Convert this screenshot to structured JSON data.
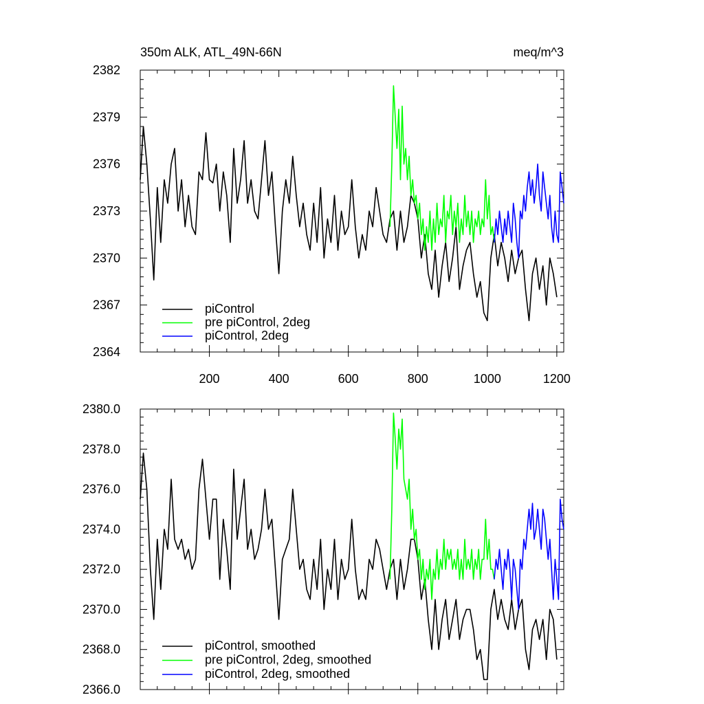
{
  "top_panel": {
    "title_left": "350m ALK, ATL_49N-66N",
    "title_right": "meq/m^3"
  },
  "chart_data": [
    {
      "type": "line",
      "title": "350m ALK, ATL_49N-66N",
      "units": "meq/m^3",
      "xlim": [
        1,
        1220
      ],
      "ylim": [
        2364,
        2382
      ],
      "x_ticks": [
        200,
        400,
        600,
        800,
        1000,
        1200
      ],
      "x_tick_labels": [
        "200",
        "400",
        "600",
        "800",
        "1000",
        "1200"
      ],
      "y_ticks": [
        2364,
        2367,
        2370,
        2373,
        2376,
        2379,
        2382
      ],
      "y_tick_labels": [
        "2364",
        "2367",
        "2370",
        "2373",
        "2376",
        "2379",
        "2382"
      ],
      "legend_position": "bottom-left",
      "series": [
        {
          "name": "piControl",
          "color": "#000000",
          "x": [
            1,
            10,
            20,
            30,
            40,
            50,
            60,
            70,
            80,
            90,
            100,
            110,
            120,
            130,
            140,
            150,
            160,
            170,
            180,
            190,
            200,
            210,
            220,
            230,
            240,
            250,
            260,
            270,
            280,
            290,
            300,
            310,
            320,
            330,
            340,
            350,
            360,
            370,
            380,
            390,
            400,
            410,
            420,
            430,
            440,
            450,
            460,
            470,
            480,
            490,
            500,
            510,
            520,
            530,
            540,
            550,
            560,
            570,
            580,
            590,
            600,
            610,
            620,
            630,
            640,
            650,
            660,
            670,
            680,
            690,
            700,
            710,
            720,
            730,
            740,
            750,
            760,
            770,
            780,
            790,
            800,
            810,
            820,
            830,
            840,
            850,
            860,
            870,
            880,
            890,
            900,
            910,
            920,
            930,
            940,
            950,
            960,
            970,
            980,
            990,
            1000,
            1010,
            1020,
            1030,
            1040,
            1050,
            1060,
            1070,
            1080,
            1090,
            1100,
            1110,
            1120,
            1130,
            1140,
            1150,
            1160,
            1170,
            1180,
            1190,
            1200
          ],
          "y": [
            2375.0,
            2378.4,
            2376.0,
            2372.5,
            2368.6,
            2374.5,
            2371.0,
            2375.0,
            2373.5,
            2376.0,
            2377.0,
            2373.0,
            2375.0,
            2372.0,
            2374.0,
            2372.0,
            2371.5,
            2375.5,
            2375.0,
            2378.0,
            2375.0,
            2374.8,
            2376.0,
            2373.0,
            2375.5,
            2374.0,
            2371.0,
            2377.0,
            2373.5,
            2375.0,
            2377.5,
            2373.5,
            2375.0,
            2373.0,
            2372.5,
            2375.0,
            2377.5,
            2374.0,
            2375.5,
            2372.0,
            2369.0,
            2373.0,
            2375.0,
            2373.5,
            2376.5,
            2374.0,
            2372.0,
            2373.5,
            2371.5,
            2370.5,
            2373.5,
            2371.0,
            2374.5,
            2370.0,
            2372.5,
            2371.0,
            2374.0,
            2370.5,
            2373.0,
            2371.5,
            2372.0,
            2375.0,
            2372.0,
            2370.0,
            2371.5,
            2370.5,
            2373.0,
            2372.0,
            2374.5,
            2373.0,
            2371.5,
            2371.0,
            2372.5,
            2373.0,
            2370.5,
            2373.0,
            2371.0,
            2372.0,
            2374.0,
            2373.5,
            2372.5,
            2370.0,
            2371.5,
            2369.0,
            2368.0,
            2370.5,
            2367.5,
            2369.5,
            2371.0,
            2368.5,
            2370.0,
            2372.0,
            2368.0,
            2369.5,
            2370.5,
            2371.0,
            2369.0,
            2367.5,
            2368.5,
            2366.5,
            2366.0,
            2370.0,
            2371.5,
            2369.5,
            2371.0,
            2370.0,
            2368.5,
            2370.5,
            2369.0,
            2370.0,
            2370.5,
            2368.0,
            2366.0,
            2369.0,
            2370.0,
            2368.0,
            2369.5,
            2367.0,
            2370.0,
            2369.0,
            2367.5
          ]
        },
        {
          "name": "pre piControl, 2deg",
          "color": "#00ff00",
          "x": [
            720,
            725,
            730,
            735,
            740,
            745,
            750,
            755,
            760,
            765,
            770,
            775,
            780,
            785,
            790,
            795,
            800,
            805,
            810,
            815,
            820,
            825,
            830,
            835,
            840,
            845,
            850,
            855,
            860,
            865,
            870,
            875,
            880,
            885,
            890,
            895,
            900,
            905,
            910,
            915,
            920,
            925,
            930,
            935,
            940,
            945,
            950,
            955,
            960,
            965,
            970,
            975,
            980,
            985,
            990,
            995,
            1000,
            1005,
            1010,
            1015,
            1020
          ],
          "y": [
            2372.0,
            2376.0,
            2381.0,
            2379.0,
            2377.0,
            2379.5,
            2375.0,
            2379.7,
            2376.0,
            2377.0,
            2375.0,
            2376.5,
            2374.0,
            2375.0,
            2373.5,
            2374.0,
            2372.5,
            2373.5,
            2371.5,
            2372.5,
            2370.5,
            2372.0,
            2371.0,
            2373.0,
            2370.5,
            2372.5,
            2371.0,
            2373.5,
            2371.5,
            2372.5,
            2372.0,
            2374.0,
            2371.0,
            2373.0,
            2372.5,
            2374.0,
            2371.5,
            2373.0,
            2372.0,
            2373.5,
            2371.0,
            2372.5,
            2371.5,
            2374.0,
            2372.0,
            2373.0,
            2371.5,
            2373.0,
            2371.0,
            2372.5,
            2372.0,
            2373.0,
            2371.5,
            2372.5,
            2372.0,
            2375.0,
            2372.5,
            2374.0,
            2371.5,
            2372.0,
            2371.0
          ]
        },
        {
          "name": "piControl, 2deg",
          "color": "#0000ff",
          "x": [
            1020,
            1025,
            1030,
            1035,
            1040,
            1045,
            1050,
            1055,
            1060,
            1065,
            1070,
            1075,
            1080,
            1085,
            1090,
            1095,
            1100,
            1105,
            1110,
            1115,
            1120,
            1125,
            1130,
            1135,
            1140,
            1145,
            1150,
            1155,
            1160,
            1165,
            1170,
            1175,
            1180,
            1185,
            1190,
            1195,
            1200,
            1205,
            1210,
            1215,
            1220
          ],
          "y": [
            2371.0,
            2372.5,
            2371.5,
            2373.0,
            2372.0,
            2371.0,
            2372.5,
            2371.5,
            2373.0,
            2372.0,
            2371.0,
            2373.5,
            2372.5,
            2371.0,
            2370.0,
            2373.0,
            2372.5,
            2374.0,
            2373.0,
            2374.5,
            2375.5,
            2374.0,
            2375.0,
            2373.5,
            2374.5,
            2376.0,
            2374.0,
            2373.0,
            2375.5,
            2374.5,
            2373.5,
            2372.5,
            2374.0,
            2372.0,
            2371.0,
            2373.0,
            2371.5,
            2371.0,
            2375.5,
            2374.5,
            2373.5
          ]
        }
      ]
    },
    {
      "type": "line",
      "xlim": [
        1,
        1220
      ],
      "ylim": [
        2366.0,
        2380.0
      ],
      "y_ticks": [
        2366,
        2368,
        2370,
        2372,
        2374,
        2376,
        2378,
        2380
      ],
      "y_tick_labels": [
        "2366.0",
        "2368.0",
        "2370.0",
        "2372.0",
        "2374.0",
        "2376.0",
        "2378.0",
        "2380.0"
      ],
      "legend_position": "bottom-left",
      "series": [
        {
          "name": "piControl, smoothed",
          "color": "#000000",
          "x": [
            1,
            10,
            20,
            30,
            40,
            50,
            60,
            70,
            80,
            90,
            100,
            110,
            120,
            130,
            140,
            150,
            160,
            170,
            180,
            190,
            200,
            210,
            220,
            230,
            240,
            250,
            260,
            270,
            280,
            290,
            300,
            310,
            320,
            330,
            340,
            350,
            360,
            370,
            380,
            390,
            400,
            410,
            420,
            430,
            440,
            450,
            460,
            470,
            480,
            490,
            500,
            510,
            520,
            530,
            540,
            550,
            560,
            570,
            580,
            590,
            600,
            610,
            620,
            630,
            640,
            650,
            660,
            670,
            680,
            690,
            700,
            710,
            720,
            730,
            740,
            750,
            760,
            770,
            780,
            790,
            800,
            810,
            820,
            830,
            840,
            850,
            860,
            870,
            880,
            890,
            900,
            910,
            920,
            930,
            940,
            950,
            960,
            970,
            980,
            990,
            1000,
            1010,
            1020,
            1030,
            1040,
            1050,
            1060,
            1070,
            1080,
            1090,
            1100,
            1110,
            1120,
            1130,
            1140,
            1150,
            1160,
            1170,
            1180,
            1190,
            1200
          ],
          "y": [
            2375.5,
            2377.8,
            2376.0,
            2372.0,
            2369.5,
            2373.5,
            2371.0,
            2374.0,
            2373.0,
            2376.5,
            2373.5,
            2373.0,
            2373.5,
            2372.5,
            2373.0,
            2372.0,
            2372.5,
            2376.0,
            2377.5,
            2375.5,
            2373.5,
            2375.5,
            2375.5,
            2371.5,
            2374.5,
            2373.0,
            2371.0,
            2377.0,
            2373.5,
            2375.0,
            2376.5,
            2373.0,
            2374.0,
            2372.5,
            2373.0,
            2374.0,
            2376.0,
            2374.0,
            2374.5,
            2372.0,
            2369.5,
            2372.5,
            2373.0,
            2373.5,
            2376.0,
            2374.0,
            2372.0,
            2372.5,
            2371.0,
            2370.5,
            2372.5,
            2371.0,
            2373.5,
            2370.0,
            2372.0,
            2371.0,
            2373.5,
            2370.5,
            2372.5,
            2371.5,
            2372.0,
            2374.5,
            2372.0,
            2370.5,
            2371.0,
            2370.5,
            2372.5,
            2372.0,
            2373.5,
            2373.0,
            2372.0,
            2371.0,
            2372.0,
            2372.5,
            2370.5,
            2372.5,
            2371.0,
            2372.0,
            2373.5,
            2373.5,
            2372.5,
            2370.5,
            2371.5,
            2369.5,
            2368.0,
            2370.5,
            2368.0,
            2369.5,
            2370.5,
            2368.5,
            2369.5,
            2370.5,
            2368.5,
            2369.5,
            2370.0,
            2370.0,
            2369.0,
            2367.5,
            2368.0,
            2366.5,
            2366.5,
            2370.0,
            2371.0,
            2369.5,
            2370.5,
            2369.5,
            2369.0,
            2370.5,
            2369.0,
            2370.0,
            2370.5,
            2368.0,
            2367.0,
            2369.0,
            2369.5,
            2368.5,
            2369.5,
            2367.5,
            2370.0,
            2369.5,
            2367.5
          ]
        },
        {
          "name": "pre piControl, 2deg, smoothed",
          "color": "#00ff00",
          "x": [
            720,
            725,
            730,
            735,
            740,
            745,
            750,
            755,
            760,
            765,
            770,
            775,
            780,
            785,
            790,
            795,
            800,
            805,
            810,
            815,
            820,
            825,
            830,
            835,
            840,
            845,
            850,
            855,
            860,
            865,
            870,
            875,
            880,
            885,
            890,
            895,
            900,
            905,
            910,
            915,
            920,
            925,
            930,
            935,
            940,
            945,
            950,
            955,
            960,
            965,
            970,
            975,
            980,
            985,
            990,
            995,
            1000,
            1005,
            1010,
            1015,
            1020
          ],
          "y": [
            2371.5,
            2375.0,
            2379.8,
            2378.5,
            2377.0,
            2379.0,
            2378.0,
            2379.5,
            2376.5,
            2376.0,
            2375.5,
            2376.5,
            2374.0,
            2375.0,
            2373.5,
            2374.0,
            2372.5,
            2373.0,
            2371.5,
            2372.5,
            2371.0,
            2372.0,
            2371.5,
            2372.5,
            2370.5,
            2372.0,
            2371.5,
            2373.0,
            2371.5,
            2372.5,
            2372.0,
            2373.5,
            2372.0,
            2373.0,
            2372.5,
            2373.0,
            2372.0,
            2372.5,
            2372.0,
            2373.0,
            2371.5,
            2372.5,
            2371.5,
            2373.5,
            2372.0,
            2372.5,
            2372.0,
            2373.0,
            2371.5,
            2372.5,
            2372.0,
            2373.0,
            2371.5,
            2372.5,
            2372.5,
            2374.5,
            2372.5,
            2373.5,
            2372.0,
            2372.0,
            2371.5
          ]
        },
        {
          "name": "piControl, 2deg, smoothed",
          "color": "#0000ff",
          "x": [
            1020,
            1025,
            1030,
            1035,
            1040,
            1045,
            1050,
            1055,
            1060,
            1065,
            1070,
            1075,
            1080,
            1085,
            1090,
            1095,
            1100,
            1105,
            1110,
            1115,
            1120,
            1125,
            1130,
            1135,
            1140,
            1145,
            1150,
            1155,
            1160,
            1165,
            1170,
            1175,
            1180,
            1185,
            1190,
            1195,
            1200,
            1205,
            1210,
            1215,
            1220
          ],
          "y": [
            2371.5,
            2372.5,
            2372.0,
            2373.0,
            2372.0,
            2371.0,
            2372.5,
            2372.0,
            2373.0,
            2372.0,
            2370.5,
            2372.5,
            2372.0,
            2371.0,
            2370.0,
            2372.5,
            2372.0,
            2373.5,
            2373.0,
            2374.0,
            2375.0,
            2374.0,
            2375.3,
            2373.5,
            2374.0,
            2375.0,
            2374.0,
            2373.0,
            2375.0,
            2374.5,
            2373.5,
            2372.5,
            2373.5,
            2372.0,
            2370.5,
            2372.5,
            2371.5,
            2370.5,
            2375.5,
            2374.5,
            2374.0
          ]
        }
      ]
    }
  ]
}
